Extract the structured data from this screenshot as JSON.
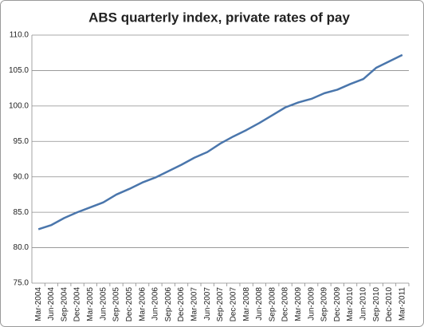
{
  "chart_data": {
    "type": "line",
    "title": "ABS quarterly index, private rates of pay",
    "categories": [
      "Mar-2004",
      "Jun-2004",
      "Sep-2004",
      "Dec-2004",
      "Mar-2005",
      "Jun-2005",
      "Sep-2005",
      "Dec-2005",
      "Mar-2006",
      "Jun-2006",
      "Sep-2006",
      "Dec-2006",
      "Mar-2007",
      "Jun-2007",
      "Sep-2007",
      "Dec-2007",
      "Mar-2008",
      "Jun-2008",
      "Sep-2008",
      "Dec-2008",
      "Mar-2009",
      "Jun-2009",
      "Sep-2009",
      "Dec-2009",
      "Mar-2010",
      "Jun-2010",
      "Sep-2010",
      "Dec-2010",
      "Mar-2011"
    ],
    "values": [
      82.6,
      83.2,
      84.2,
      85.0,
      85.7,
      86.4,
      87.5,
      88.3,
      89.2,
      89.9,
      90.8,
      91.7,
      92.7,
      93.5,
      94.7,
      95.7,
      96.6,
      97.6,
      98.7,
      99.8,
      100.5,
      101.0,
      101.8,
      102.3,
      103.1,
      103.8,
      105.4,
      106.3,
      107.2
    ],
    "color": "#4a76ac",
    "ylim": [
      75,
      110
    ],
    "yticks": [
      {
        "value": 75,
        "label": "75.0"
      },
      {
        "value": 80,
        "label": "80.0"
      },
      {
        "value": 85,
        "label": "85.0"
      },
      {
        "value": 90,
        "label": "90.0"
      },
      {
        "value": 95,
        "label": "95.0"
      },
      {
        "value": 100,
        "label": "100.0"
      },
      {
        "value": 105,
        "label": "105.0"
      },
      {
        "value": 110,
        "label": "110.0"
      }
    ],
    "grid": true
  }
}
